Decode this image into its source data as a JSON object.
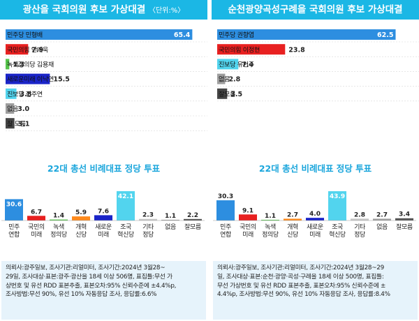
{
  "panels": [
    {
      "title": "광산을 국회의원 후보 가상대결",
      "unit": "〈단위:%〉"
    },
    {
      "title": "순천광양곡성구례을 국회의원 후보 가상대결",
      "unit": ""
    },
    {
      "title": "22대 총선 비례대표 정당 투표",
      "notes": [
        "의뢰사:광주일보, 조사기관:리얼미터, 조사기간:2024년 3월28~",
        "29일, 조사대상·표본:광주·광산을 18세 이상 506명, 표집틀:무선 가",
        "상번호 및 유선 RDD 표본추출, 표본오차:95% 신뢰수준에 ±4.4%p,",
        "조사방법:무선 90%, 유선 10% 자동응답 조사, 응답률:6.6%"
      ]
    },
    {
      "title": "22대 총선 비례대표 정당 투표",
      "notes": [
        "의뢰사:광주일보, 조사기관:리얼미터, 조사기간:2024년 3월28~29",
        "일, 조사대상·표본:순천·광양·곡성·구례을 18세 이상 500명, 표집틀:",
        "무선 가상번호 및 유선 RDD 표본추출, 표본오차:95% 신뢰수준에 ±",
        "4.4%p, 조사방법:무선 90%, 유선 10% 자동응답 조사, 응답률:8.4%"
      ]
    }
  ],
  "chart_data": [
    {
      "type": "bar",
      "orientation": "horizontal",
      "title": "광산을 국회의원 후보 가상대결",
      "unit": "%",
      "categories": [
        "민주당 민형배",
        "국민의힘 안태욱",
        "녹색정의당 김용재",
        "새로운미래 이낙연",
        "진보당 전주연",
        "없음",
        "잘 모름"
      ],
      "values": [
        65.4,
        7.9,
        1.3,
        15.5,
        3.8,
        3.0,
        3.1
      ],
      "value_labels": [
        "65.4",
        "7.9",
        "1.3",
        "15.5",
        "3.8",
        "3.0",
        "3.1"
      ],
      "colors": [
        "#2d8ee0",
        "#e82020",
        "#55c34a",
        "#1a24c8",
        "#52d4ee",
        "#9e9e9e",
        "#444444"
      ],
      "ylim": [
        0,
        68
      ]
    },
    {
      "type": "bar",
      "orientation": "horizontal",
      "title": "순천광양곡성구례을 국회의원 후보 가상대결",
      "unit": "%",
      "categories": [
        "민주당 권향엽",
        "국민의힘 이정현",
        "진보당 유현주",
        "없음",
        "잘모름"
      ],
      "values": [
        62.5,
        23.8,
        7.4,
        2.8,
        3.5
      ],
      "value_labels": [
        "62.5",
        "23.8",
        "7.4",
        "2.8",
        "3.5"
      ],
      "colors": [
        "#2d8ee0",
        "#e82020",
        "#52d4ee",
        "#9e9e9e",
        "#444444"
      ],
      "ylim": [
        0,
        68
      ]
    },
    {
      "type": "bar",
      "orientation": "vertical",
      "title": "22대 총선 비례대표 정당 투표",
      "unit": "%",
      "categories": [
        "민주\n연합",
        "국민의\n미래",
        "녹색\n정의당",
        "개혁\n신당",
        "새로운\n미래",
        "조국\n혁신당",
        "기타\n정당",
        "없음",
        "잘모름"
      ],
      "values": [
        30.6,
        6.7,
        1.4,
        5.9,
        7.6,
        42.1,
        2.3,
        1.1,
        2.2
      ],
      "value_labels": [
        "30.6",
        "6.7",
        "1.4",
        "5.9",
        "7.6",
        "42.1",
        "2.3",
        "1.1",
        "2.2"
      ],
      "colors": [
        "#2d8ee0",
        "#e82020",
        "#55c34a",
        "#ff8a1c",
        "#1a24c8",
        "#52d4ee",
        "#c7c7c7",
        "#9e9e9e",
        "#555555"
      ],
      "ylim": [
        0,
        44
      ]
    },
    {
      "type": "bar",
      "orientation": "vertical",
      "title": "22대 총선 비례대표 정당 투표",
      "unit": "%",
      "categories": [
        "민주\n연합",
        "국민의\n미래",
        "녹색\n정의당",
        "개혁\n신당",
        "새로운\n미래",
        "조국\n혁신당",
        "기타\n정당",
        "없음",
        "잘모름"
      ],
      "values": [
        30.3,
        9.1,
        1.1,
        2.7,
        4.0,
        43.9,
        2.8,
        2.7,
        3.4
      ],
      "value_labels": [
        "30.3",
        "9.1",
        "1.1",
        "2.7",
        "4.0",
        "43.9",
        "2.8",
        "2.7",
        "3.4"
      ],
      "colors": [
        "#2d8ee0",
        "#e82020",
        "#55c34a",
        "#ff8a1c",
        "#1a24c8",
        "#52d4ee",
        "#c7c7c7",
        "#9e9e9e",
        "#555555"
      ],
      "ylim": [
        0,
        46
      ]
    }
  ]
}
